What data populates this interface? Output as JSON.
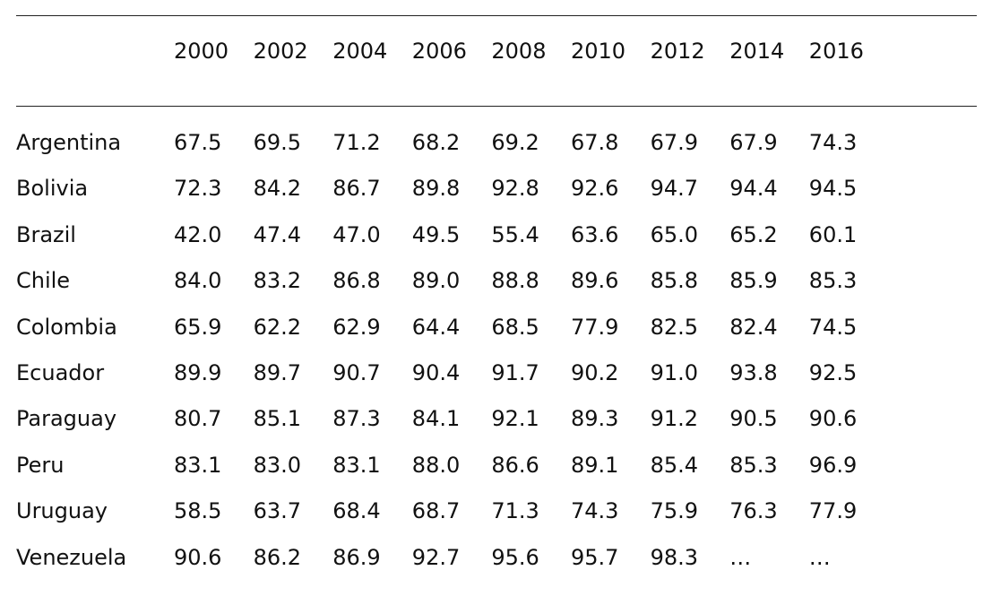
{
  "table": {
    "header": [
      "2000",
      "2002",
      "2004",
      "2006",
      "2008",
      "2010",
      "2012",
      "2014",
      "2016"
    ],
    "rows": [
      [
        "Argentina",
        "67.5",
        "69.5",
        "71.2",
        "68.2",
        "69.2",
        "67.8",
        "67.9",
        "67.9",
        "74.3"
      ],
      [
        "Bolivia",
        "72.3",
        "84.2",
        "86.7",
        "89.8",
        "92.8",
        "92.6",
        "94.7",
        "94.4",
        "94.5"
      ],
      [
        "Brazil",
        "42.0",
        "47.4",
        "47.0",
        "49.5",
        "55.4",
        "63.6",
        "65.0",
        "65.2",
        "60.1"
      ],
      [
        "Chile",
        "84.0",
        "83.2",
        "86.8",
        "89.0",
        "88.8",
        "89.6",
        "85.8",
        "85.9",
        "85.3"
      ],
      [
        "Colombia",
        "65.9",
        "62.2",
        "62.9",
        "64.4",
        "68.5",
        "77.9",
        "82.5",
        "82.4",
        "74.5"
      ],
      [
        "Ecuador",
        "89.9",
        "89.7",
        "90.7",
        "90.4",
        "91.7",
        "90.2",
        "91.0",
        "93.8",
        "92.5"
      ],
      [
        "Paraguay",
        "80.7",
        "85.1",
        "87.3",
        "84.1",
        "92.1",
        "89.3",
        "91.2",
        "90.5",
        "90.6"
      ],
      [
        "Peru",
        "83.1",
        "83.0",
        "83.1",
        "88.0",
        "86.6",
        "89.1",
        "85.4",
        "85.3",
        "96.9"
      ],
      [
        "Uruguay",
        "58.5",
        "63.7",
        "68.4",
        "68.7",
        "71.3",
        "74.3",
        "75.9",
        "76.3",
        "77.9"
      ],
      [
        "Venezuela",
        "90.6",
        "86.2",
        "86.9",
        "92.7",
        "95.6",
        "95.7",
        "98.3",
        "…",
        "…"
      ]
    ]
  }
}
